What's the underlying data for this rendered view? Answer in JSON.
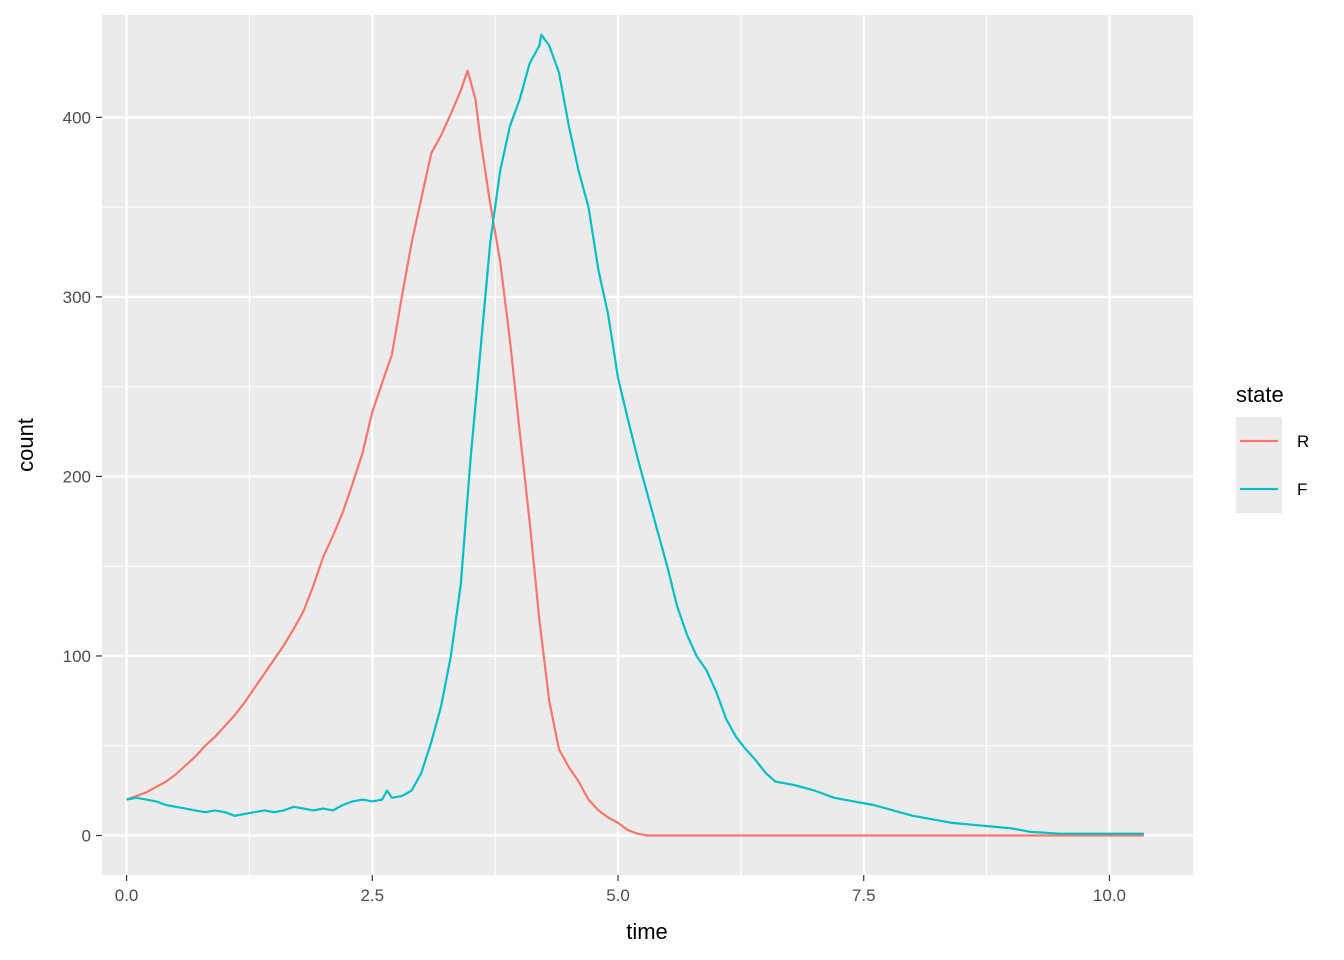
{
  "chart_data": {
    "type": "line",
    "title": "",
    "xlabel": "time",
    "ylabel": "count",
    "xlim": [
      -0.25,
      10.85
    ],
    "ylim": [
      -22,
      457
    ],
    "x_ticks": [
      0,
      2.5,
      5,
      7.5,
      10
    ],
    "x_tick_labels": [
      "0.0",
      "2.5",
      "5.0",
      "7.5",
      "10.0"
    ],
    "y_ticks": [
      0,
      100,
      200,
      300,
      400
    ],
    "y_tick_labels": [
      "0",
      "100",
      "200",
      "300",
      "400"
    ],
    "grid": true,
    "legend": {
      "title": "state",
      "position": "right"
    },
    "panel_background": "#ebebeb",
    "grid_color": "#ffffff",
    "series": [
      {
        "name": "R",
        "color": "#F8766D",
        "points": [
          [
            0.0,
            20
          ],
          [
            0.1,
            22
          ],
          [
            0.2,
            24
          ],
          [
            0.3,
            27
          ],
          [
            0.4,
            30
          ],
          [
            0.5,
            34
          ],
          [
            0.6,
            39
          ],
          [
            0.7,
            44
          ],
          [
            0.8,
            50
          ],
          [
            0.9,
            55
          ],
          [
            1.0,
            61
          ],
          [
            1.1,
            67
          ],
          [
            1.2,
            74
          ],
          [
            1.3,
            82
          ],
          [
            1.4,
            90
          ],
          [
            1.5,
            98
          ],
          [
            1.6,
            106
          ],
          [
            1.7,
            115
          ],
          [
            1.8,
            125
          ],
          [
            1.9,
            139
          ],
          [
            2.0,
            155
          ],
          [
            2.1,
            167
          ],
          [
            2.2,
            180
          ],
          [
            2.3,
            196
          ],
          [
            2.4,
            213
          ],
          [
            2.5,
            236
          ],
          [
            2.6,
            252
          ],
          [
            2.7,
            268
          ],
          [
            2.8,
            300
          ],
          [
            2.9,
            330
          ],
          [
            3.0,
            355
          ],
          [
            3.1,
            380
          ],
          [
            3.2,
            390
          ],
          [
            3.3,
            402
          ],
          [
            3.4,
            415
          ],
          [
            3.47,
            426
          ],
          [
            3.55,
            410
          ],
          [
            3.6,
            388
          ],
          [
            3.7,
            352
          ],
          [
            3.8,
            320
          ],
          [
            3.9,
            276
          ],
          [
            4.0,
            225
          ],
          [
            4.1,
            175
          ],
          [
            4.2,
            120
          ],
          [
            4.3,
            75
          ],
          [
            4.4,
            48
          ],
          [
            4.5,
            38
          ],
          [
            4.6,
            30
          ],
          [
            4.7,
            20
          ],
          [
            4.8,
            14
          ],
          [
            4.9,
            10
          ],
          [
            5.0,
            7
          ],
          [
            5.1,
            3
          ],
          [
            5.2,
            1
          ],
          [
            5.3,
            0
          ],
          [
            6.0,
            0
          ],
          [
            7.0,
            0
          ],
          [
            8.0,
            0
          ],
          [
            9.0,
            0
          ],
          [
            10.35,
            0
          ]
        ]
      },
      {
        "name": "F",
        "color": "#00BFC4",
        "points": [
          [
            0.0,
            20
          ],
          [
            0.1,
            21
          ],
          [
            0.2,
            20
          ],
          [
            0.3,
            19
          ],
          [
            0.4,
            17
          ],
          [
            0.5,
            16
          ],
          [
            0.6,
            15
          ],
          [
            0.7,
            14
          ],
          [
            0.8,
            13
          ],
          [
            0.9,
            14
          ],
          [
            1.0,
            13
          ],
          [
            1.1,
            11
          ],
          [
            1.2,
            12
          ],
          [
            1.3,
            13
          ],
          [
            1.4,
            14
          ],
          [
            1.5,
            13
          ],
          [
            1.6,
            14
          ],
          [
            1.7,
            16
          ],
          [
            1.8,
            15
          ],
          [
            1.9,
            14
          ],
          [
            2.0,
            15
          ],
          [
            2.1,
            14
          ],
          [
            2.2,
            17
          ],
          [
            2.3,
            19
          ],
          [
            2.4,
            20
          ],
          [
            2.5,
            19
          ],
          [
            2.6,
            20
          ],
          [
            2.65,
            25
          ],
          [
            2.7,
            21
          ],
          [
            2.8,
            22
          ],
          [
            2.9,
            25
          ],
          [
            3.0,
            35
          ],
          [
            3.1,
            52
          ],
          [
            3.2,
            72
          ],
          [
            3.3,
            100
          ],
          [
            3.4,
            140
          ],
          [
            3.5,
            210
          ],
          [
            3.6,
            270
          ],
          [
            3.7,
            330
          ],
          [
            3.8,
            370
          ],
          [
            3.9,
            395
          ],
          [
            4.0,
            410
          ],
          [
            4.1,
            430
          ],
          [
            4.2,
            440
          ],
          [
            4.22,
            446
          ],
          [
            4.3,
            440
          ],
          [
            4.4,
            425
          ],
          [
            4.5,
            395
          ],
          [
            4.6,
            370
          ],
          [
            4.7,
            350
          ],
          [
            4.8,
            315
          ],
          [
            4.9,
            290
          ],
          [
            5.0,
            255
          ],
          [
            5.1,
            232
          ],
          [
            5.2,
            210
          ],
          [
            5.3,
            190
          ],
          [
            5.4,
            170
          ],
          [
            5.5,
            150
          ],
          [
            5.6,
            128
          ],
          [
            5.7,
            112
          ],
          [
            5.8,
            100
          ],
          [
            5.9,
            92
          ],
          [
            6.0,
            80
          ],
          [
            6.1,
            65
          ],
          [
            6.2,
            55
          ],
          [
            6.3,
            48
          ],
          [
            6.4,
            42
          ],
          [
            6.5,
            35
          ],
          [
            6.6,
            30
          ],
          [
            6.8,
            28
          ],
          [
            7.0,
            25
          ],
          [
            7.2,
            21
          ],
          [
            7.4,
            19
          ],
          [
            7.6,
            17
          ],
          [
            7.8,
            14
          ],
          [
            8.0,
            11
          ],
          [
            8.2,
            9
          ],
          [
            8.4,
            7
          ],
          [
            8.6,
            6
          ],
          [
            8.8,
            5
          ],
          [
            9.0,
            4
          ],
          [
            9.2,
            2
          ],
          [
            9.5,
            1
          ],
          [
            10.35,
            1
          ]
        ]
      }
    ]
  }
}
